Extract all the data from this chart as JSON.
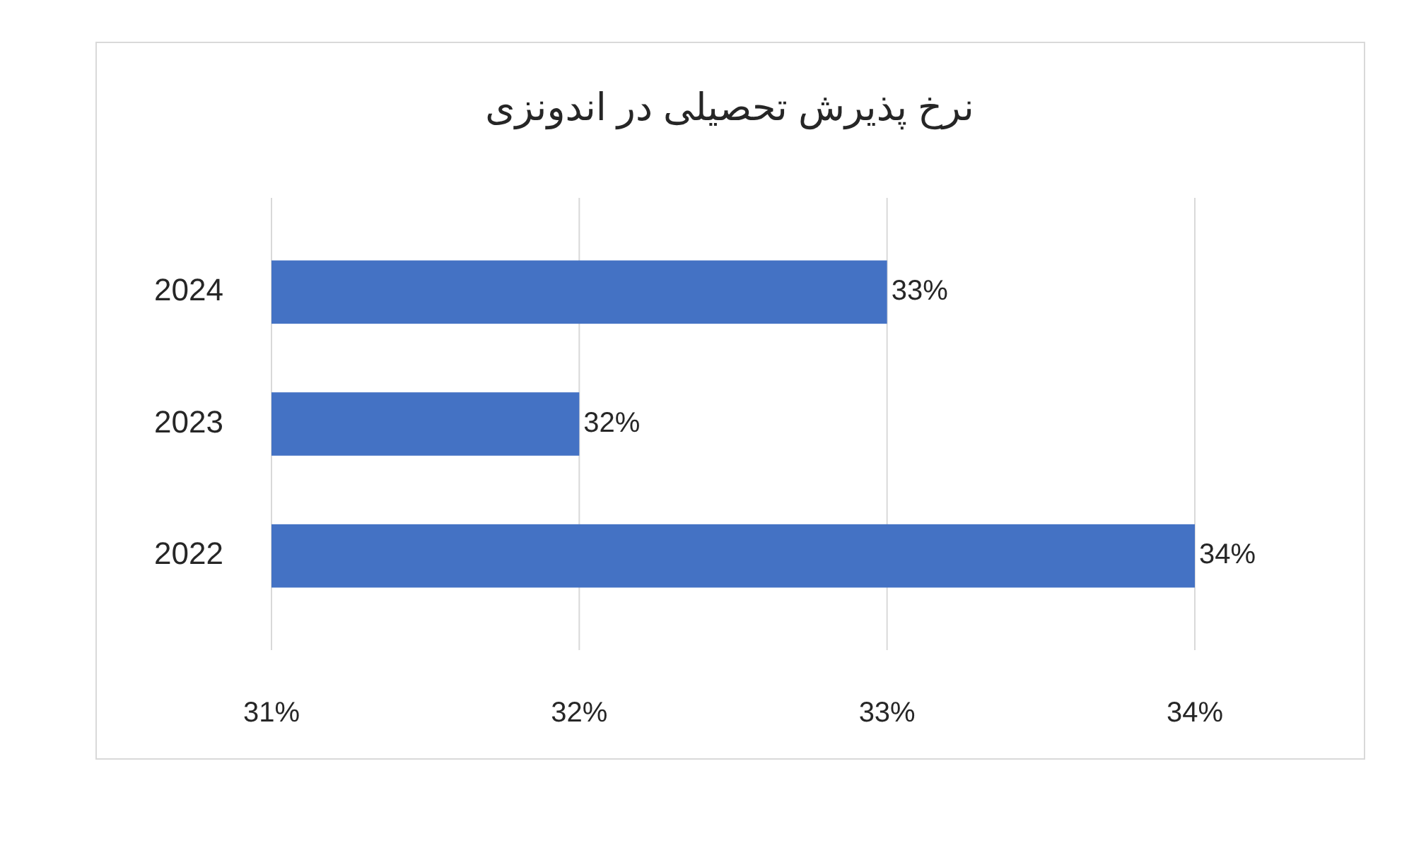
{
  "chart_data": {
    "type": "bar",
    "title": "نرخ پذیرش تحصیلی در اندونزی",
    "orientation": "horizontal",
    "categories": [
      "2024",
      "2023",
      "2022"
    ],
    "values": [
      33,
      32,
      34
    ],
    "color": "#4472c4",
    "value_labels": [
      "33%",
      "32%",
      "34%"
    ],
    "xlim": [
      31,
      34
    ],
    "xticks": [
      {
        "value": 31,
        "label": "31%"
      },
      {
        "value": 32,
        "label": "32%"
      },
      {
        "value": 33,
        "label": "33%"
      },
      {
        "value": 34,
        "label": "34%"
      }
    ],
    "grid": "x"
  }
}
